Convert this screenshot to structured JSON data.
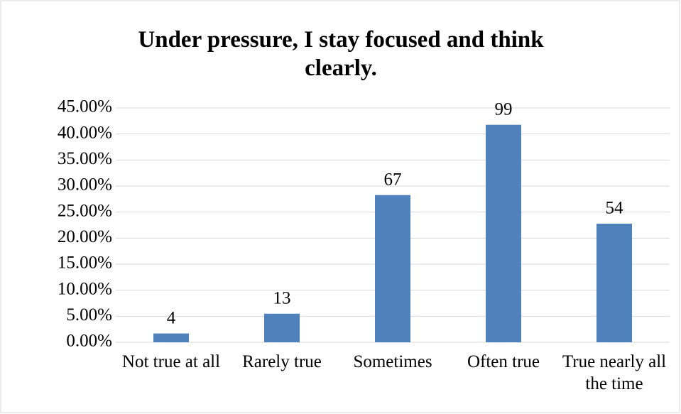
{
  "chart_data": {
    "type": "bar",
    "title": "Under pressure, I stay focused and think clearly.",
    "categories": [
      "Not true at all",
      "Rarely true",
      "Sometimes",
      "Often true",
      "True nearly all the time"
    ],
    "values": [
      1.69,
      5.49,
      28.27,
      41.77,
      22.78
    ],
    "data_labels": [
      4,
      13,
      67,
      99,
      54
    ],
    "color": "#4f81bd",
    "ylim": [
      0,
      45
    ],
    "yticks": [
      {
        "value": 0,
        "label": "0.00%"
      },
      {
        "value": 5,
        "label": "5.00%"
      },
      {
        "value": 10,
        "label": "10.00%"
      },
      {
        "value": 15,
        "label": "15.00%"
      },
      {
        "value": 20,
        "label": "20.00%"
      },
      {
        "value": 25,
        "label": "25.00%"
      },
      {
        "value": 30,
        "label": "30.00%"
      },
      {
        "value": 35,
        "label": "35.00%"
      },
      {
        "value": 40,
        "label": "40.00%"
      },
      {
        "value": 45,
        "label": "45.00%"
      }
    ],
    "grid": true
  }
}
